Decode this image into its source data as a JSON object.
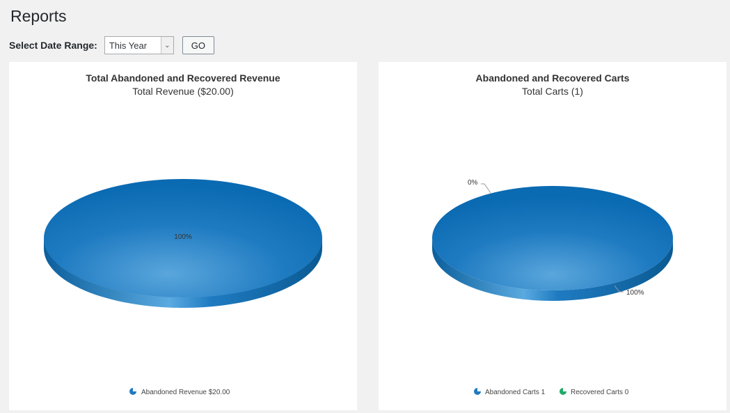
{
  "page": {
    "title": "Reports"
  },
  "filter": {
    "label": "Select Date Range:",
    "selected": "This Year",
    "go_label": "GO"
  },
  "colors": {
    "abandoned": "#1f7bc1",
    "abandoned_dark": "#0f5e97",
    "recovered": "#1faa6b",
    "panel_bg": "#ffffff",
    "page_bg": "#f1f1f1"
  },
  "chart_data": [
    {
      "type": "pie",
      "title": "Total Abandoned and Recovered Revenue",
      "subtitle": "Total Revenue ($20.00)",
      "slices": [
        {
          "label": "Abandoned Revenue",
          "value": 20.0,
          "percent_label": "100%"
        }
      ],
      "legend": [
        {
          "text": "Abandoned Revenue $20.00",
          "color_key": "abandoned"
        }
      ],
      "legend_position": "bottom-center"
    },
    {
      "type": "pie",
      "title": "Abandoned and Recovered Carts",
      "subtitle": "Total Carts (1)",
      "slices": [
        {
          "label": "Abandoned Carts",
          "value": 1,
          "percent_label": "100%"
        },
        {
          "label": "Recovered Carts",
          "value": 0,
          "percent_label": "0%"
        }
      ],
      "legend": [
        {
          "text": "Abandoned Carts 1",
          "color_key": "abandoned"
        },
        {
          "text": "Recovered Carts 0",
          "color_key": "recovered"
        }
      ],
      "legend_position": "bottom-center"
    }
  ]
}
